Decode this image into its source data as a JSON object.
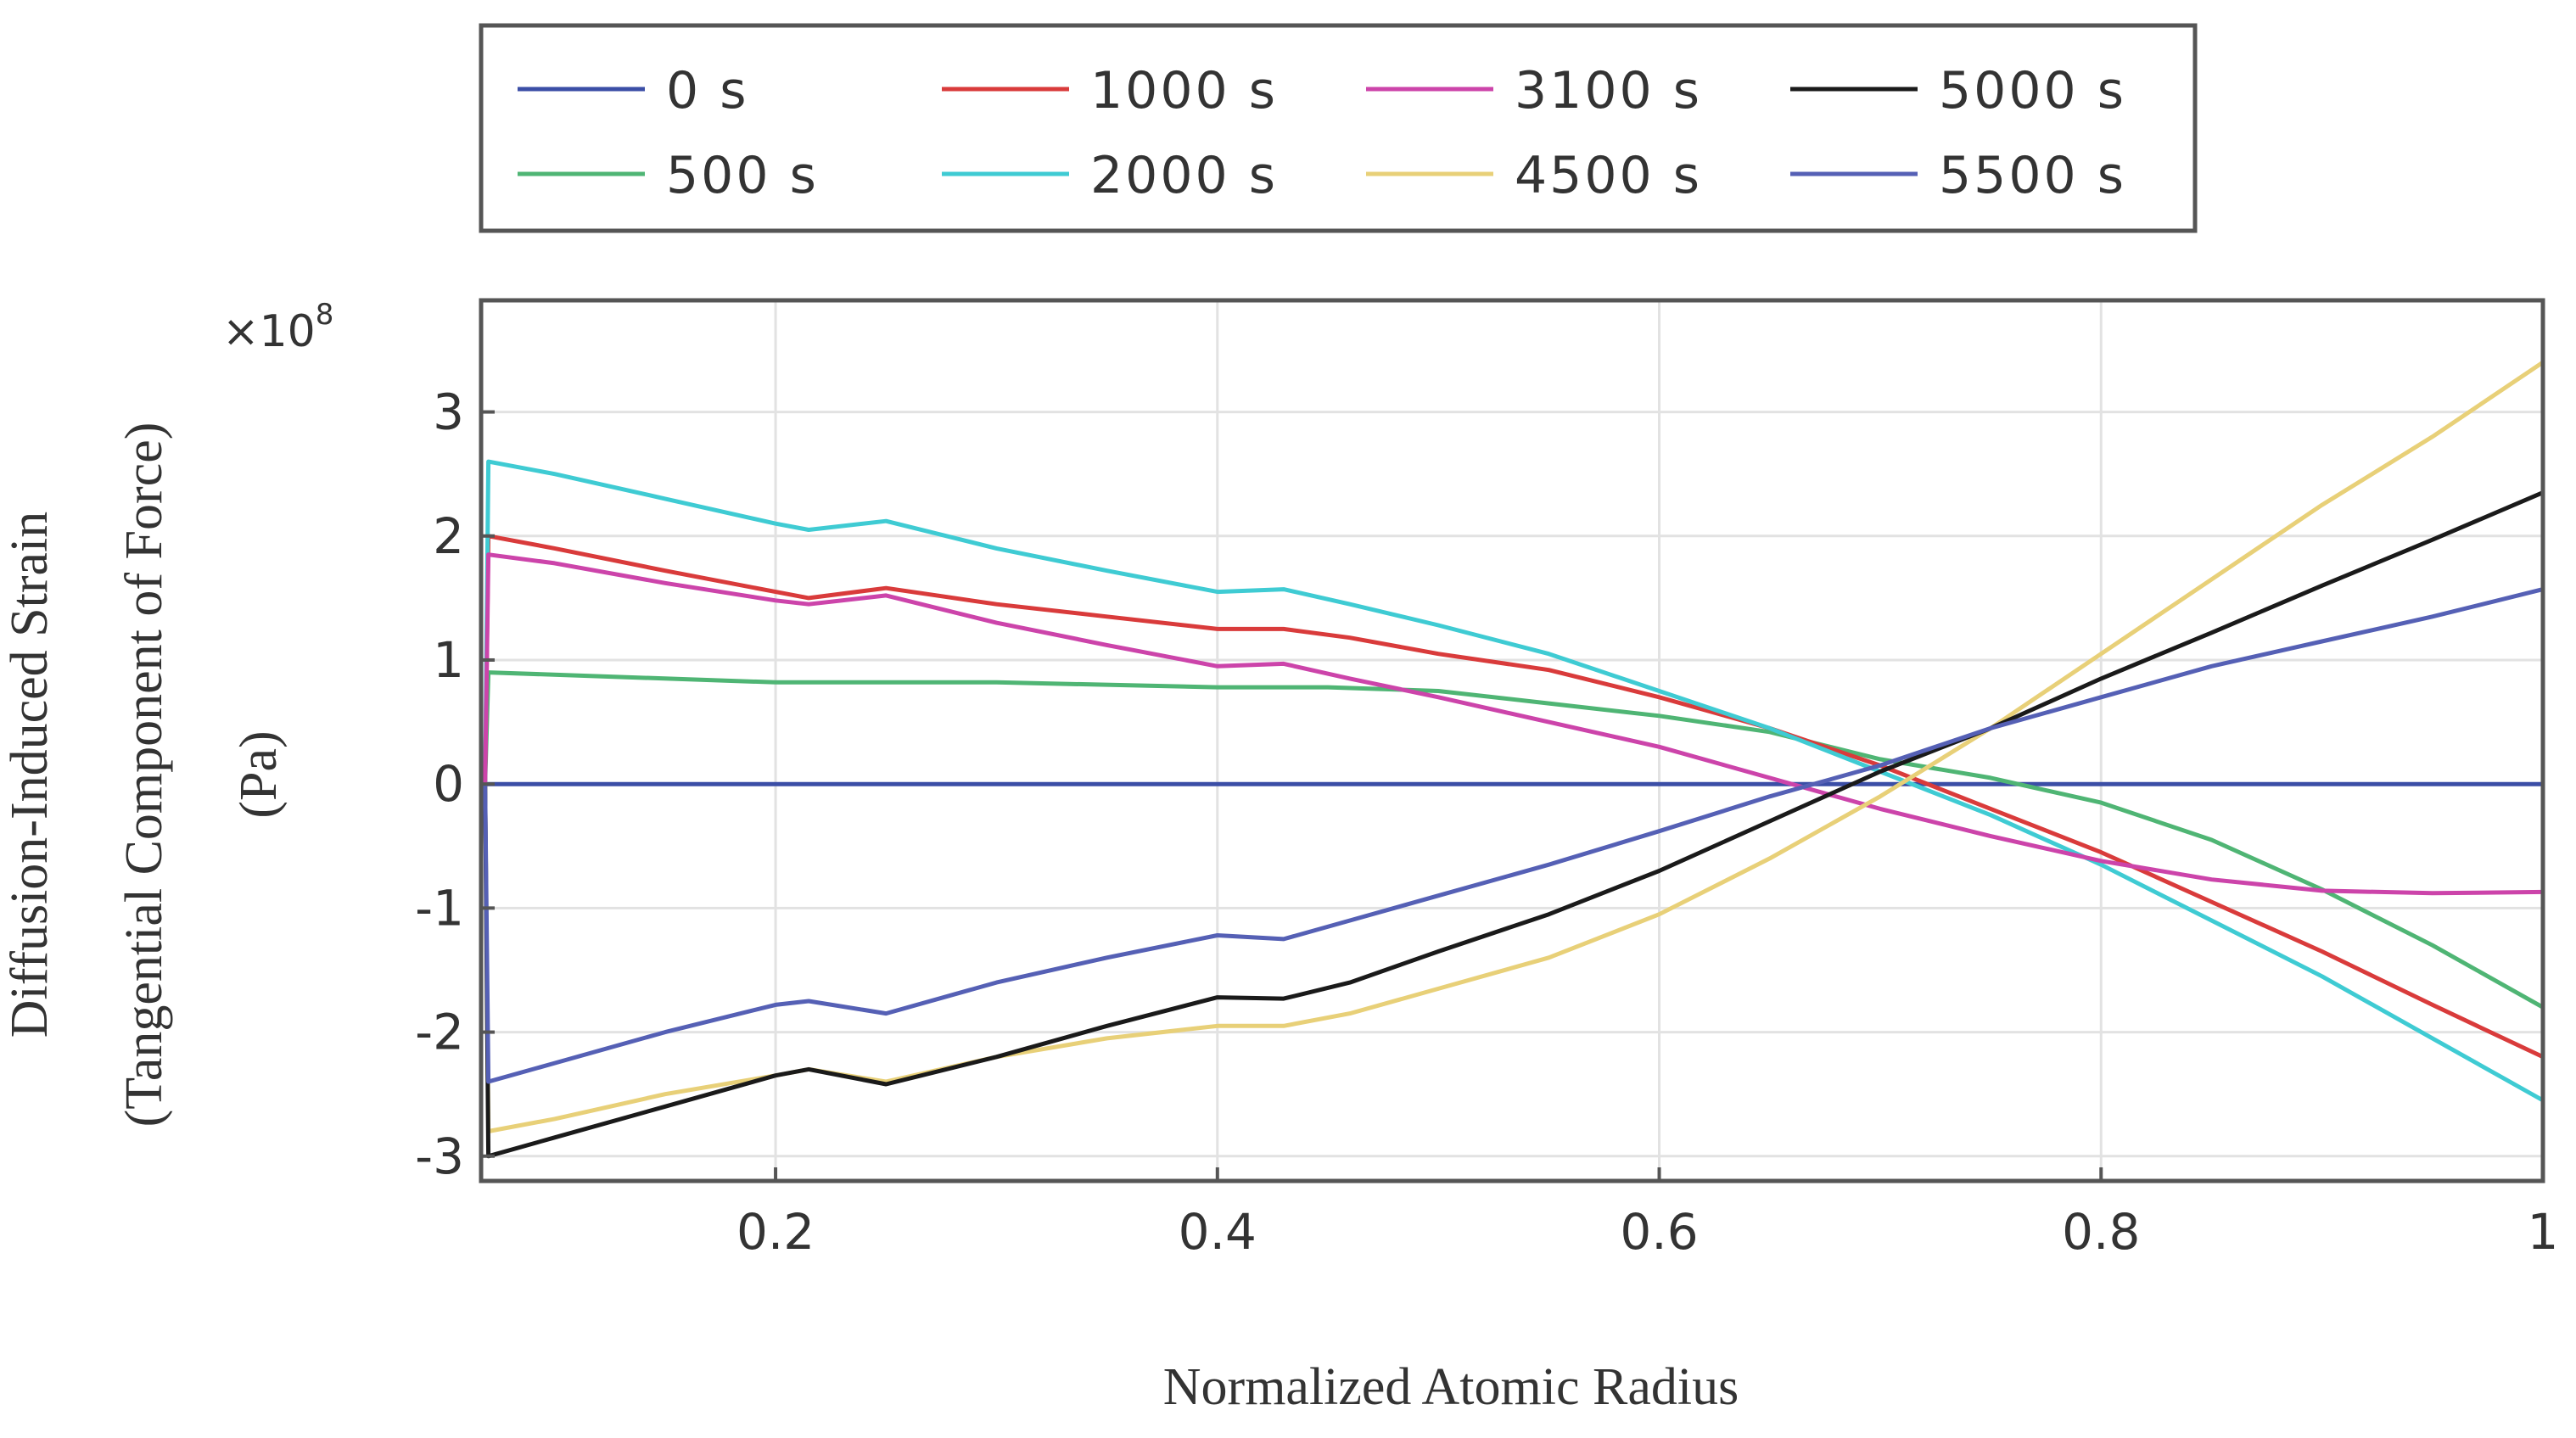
{
  "chart_data": {
    "type": "line",
    "title": "",
    "xlabel": "Normalized Atomic Radius",
    "ylabel_lines": [
      "Diffusion-Induced Strain",
      "(Tangential Component of Force)",
      "(Pa)"
    ],
    "y_multiplier_base": "×10",
    "y_multiplier_exp": "8",
    "xlim": [
      0.0667,
      1.0
    ],
    "ylim": [
      -3.2,
      3.9
    ],
    "xticks": [
      0.2,
      0.4,
      0.6,
      0.8,
      1.0
    ],
    "xtick_labels": [
      "0.2",
      "0.4",
      "0.6",
      "0.8",
      "1"
    ],
    "yticks": [
      -3,
      -2,
      -1,
      0,
      1,
      2,
      3
    ],
    "ytick_labels": [
      "-3",
      "-2",
      "-1",
      "0",
      "1",
      "2",
      "3"
    ],
    "grid": true,
    "legend_position": "top-center",
    "series": [
      {
        "name": "0 s",
        "color": "#3b4ea6",
        "x": [
          0.068,
          1.0
        ],
        "y": [
          0,
          0
        ]
      },
      {
        "name": "500 s",
        "color": "#4fb574",
        "x": [
          0.07,
          0.2,
          0.3,
          0.4,
          0.45,
          0.5,
          0.55,
          0.6,
          0.65,
          0.7,
          0.75,
          0.8,
          0.85,
          0.9,
          0.95,
          1.0
        ],
        "y": [
          0.9,
          0.82,
          0.82,
          0.78,
          0.78,
          0.75,
          0.65,
          0.55,
          0.42,
          0.2,
          0.05,
          -0.15,
          -0.45,
          -0.85,
          -1.3,
          -1.8
        ]
      },
      {
        "name": "1000 s",
        "color": "#d93b3b",
        "x": [
          0.07,
          0.1,
          0.15,
          0.2,
          0.215,
          0.25,
          0.3,
          0.35,
          0.4,
          0.43,
          0.46,
          0.5,
          0.55,
          0.6,
          0.65,
          0.7,
          0.75,
          0.8,
          0.85,
          0.9,
          0.95,
          1.0
        ],
        "y": [
          2.0,
          1.9,
          1.72,
          1.55,
          1.5,
          1.58,
          1.45,
          1.35,
          1.25,
          1.25,
          1.18,
          1.05,
          0.92,
          0.7,
          0.45,
          0.15,
          -0.2,
          -0.55,
          -0.95,
          -1.35,
          -1.78,
          -2.2
        ]
      },
      {
        "name": "2000 s",
        "color": "#3fcbd3",
        "x": [
          0.07,
          0.1,
          0.15,
          0.2,
          0.215,
          0.25,
          0.3,
          0.35,
          0.4,
          0.43,
          0.46,
          0.5,
          0.55,
          0.6,
          0.65,
          0.7,
          0.75,
          0.8,
          0.85,
          0.9,
          0.95,
          1.0
        ],
        "y": [
          2.6,
          2.5,
          2.3,
          2.1,
          2.05,
          2.12,
          1.9,
          1.72,
          1.55,
          1.57,
          1.45,
          1.28,
          1.05,
          0.75,
          0.45,
          0.1,
          -0.25,
          -0.65,
          -1.1,
          -1.55,
          -2.05,
          -2.55
        ]
      },
      {
        "name": "3100 s",
        "color": "#cc44aa",
        "x": [
          0.07,
          0.1,
          0.15,
          0.2,
          0.215,
          0.25,
          0.3,
          0.35,
          0.4,
          0.43,
          0.46,
          0.5,
          0.55,
          0.6,
          0.65,
          0.7,
          0.75,
          0.8,
          0.85,
          0.9,
          0.95,
          1.0
        ],
        "y": [
          1.85,
          1.78,
          1.62,
          1.48,
          1.45,
          1.52,
          1.3,
          1.12,
          0.95,
          0.97,
          0.85,
          0.7,
          0.5,
          0.3,
          0.05,
          -0.2,
          -0.42,
          -0.62,
          -0.77,
          -0.86,
          -0.88,
          -0.87
        ]
      },
      {
        "name": "4500 s",
        "color": "#e8d078",
        "x": [
          0.07,
          0.1,
          0.15,
          0.2,
          0.215,
          0.25,
          0.3,
          0.35,
          0.4,
          0.43,
          0.46,
          0.5,
          0.55,
          0.6,
          0.65,
          0.7,
          0.75,
          0.8,
          0.85,
          0.9,
          0.95,
          1.0
        ],
        "y": [
          -2.8,
          -2.7,
          -2.5,
          -2.35,
          -2.3,
          -2.4,
          -2.2,
          -2.05,
          -1.95,
          -1.95,
          -1.85,
          -1.65,
          -1.4,
          -1.05,
          -0.6,
          -0.1,
          0.45,
          1.05,
          1.65,
          2.25,
          2.8,
          3.4
        ]
      },
      {
        "name": "5000 s",
        "color": "#1a1a1a",
        "x": [
          0.07,
          0.1,
          0.15,
          0.2,
          0.215,
          0.25,
          0.3,
          0.35,
          0.4,
          0.43,
          0.46,
          0.5,
          0.55,
          0.6,
          0.65,
          0.7,
          0.75,
          0.8,
          0.85,
          0.9,
          0.95,
          1.0
        ],
        "y": [
          -3.0,
          -2.85,
          -2.6,
          -2.35,
          -2.3,
          -2.42,
          -2.2,
          -1.95,
          -1.72,
          -1.73,
          -1.6,
          -1.35,
          -1.05,
          -0.7,
          -0.3,
          0.1,
          0.45,
          0.85,
          1.22,
          1.6,
          1.97,
          2.35
        ]
      },
      {
        "name": "5500 s",
        "color": "#5560b5",
        "x": [
          0.07,
          0.1,
          0.15,
          0.2,
          0.215,
          0.25,
          0.3,
          0.35,
          0.4,
          0.43,
          0.46,
          0.5,
          0.55,
          0.6,
          0.65,
          0.7,
          0.75,
          0.8,
          0.85,
          0.9,
          0.95,
          1.0
        ],
        "y": [
          -2.4,
          -2.25,
          -2.0,
          -1.78,
          -1.75,
          -1.85,
          -1.6,
          -1.4,
          -1.22,
          -1.25,
          -1.1,
          -0.9,
          -0.65,
          -0.38,
          -0.1,
          0.15,
          0.45,
          0.7,
          0.95,
          1.15,
          1.35,
          1.57
        ]
      }
    ]
  }
}
